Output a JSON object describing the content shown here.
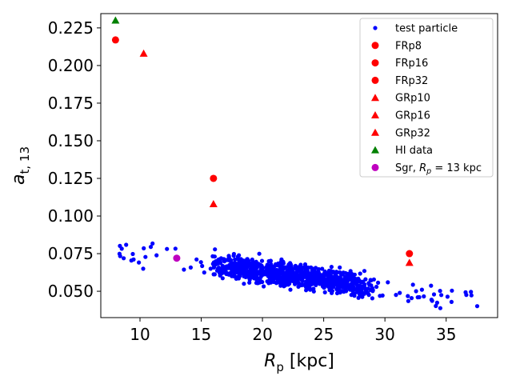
{
  "chart_data": {
    "type": "scatter",
    "title": "",
    "xlabel": "R_p [kpc]",
    "ylabel": "a_t, 13",
    "xlabel_parts": {
      "main": "R",
      "sub": "p",
      "rest": " [kpc]"
    },
    "ylabel_parts": {
      "main": "a",
      "sub": "t, 13"
    },
    "xlim": [
      6.8,
      39.2
    ],
    "ylim": [
      0.0325,
      0.2345
    ],
    "xticks": [
      10,
      15,
      20,
      25,
      30,
      35
    ],
    "yticks": [
      0.05,
      0.075,
      0.1,
      0.125,
      0.15,
      0.175,
      0.2,
      0.225
    ],
    "ytick_labels": [
      "0.050",
      "0.075",
      "0.100",
      "0.125",
      "0.150",
      "0.175",
      "0.200",
      "0.225"
    ],
    "legend_position": "top-right",
    "series": [
      {
        "name": "test particle",
        "legend_label": "test particle",
        "marker": "dot",
        "color": "#0000ff",
        "points": "generated",
        "note": "~1000 points spanning R_p 8-38 kpc, a_t,13 0.04-0.09, decreasing trend"
      },
      {
        "name": "FRp8",
        "legend_label": "FRp8",
        "marker": "circle",
        "color": "#ff0000",
        "x": [
          8
        ],
        "y": [
          0.217
        ]
      },
      {
        "name": "FRp16",
        "legend_label": "FRp16",
        "marker": "circle",
        "color": "#ff0000",
        "x": [
          16
        ],
        "y": [
          0.125
        ]
      },
      {
        "name": "FRp32",
        "legend_label": "FRp32",
        "marker": "circle",
        "color": "#ff0000",
        "x": [
          32
        ],
        "y": [
          0.075
        ]
      },
      {
        "name": "GRp10",
        "legend_label": "GRp10",
        "marker": "triangle",
        "color": "#ff0000",
        "x": [
          10.3
        ],
        "y": [
          0.208
        ]
      },
      {
        "name": "GRp16",
        "legend_label": "GRp16",
        "marker": "triangle",
        "color": "#ff0000",
        "x": [
          16
        ],
        "y": [
          0.108
        ]
      },
      {
        "name": "GRp32",
        "legend_label": "GRp32",
        "marker": "triangle",
        "color": "#ff0000",
        "x": [
          32
        ],
        "y": [
          0.069
        ]
      },
      {
        "name": "HI data",
        "legend_label": "HI data",
        "marker": "triangle",
        "color": "#008000",
        "x": [
          8
        ],
        "y": [
          0.23
        ]
      },
      {
        "name": "Sgr, R_p = 13 kpc",
        "legend_label": "Sgr, R_p = 13 kpc",
        "legend_parts": {
          "pre": "Sgr, ",
          "main": "R",
          "sub": "p",
          "post": " = 13 kpc"
        },
        "marker": "circle",
        "color": "#bf00bf",
        "x": [
          13
        ],
        "y": [
          0.072
        ]
      }
    ],
    "test_particle_trend": {
      "x_range": [
        8,
        38
      ],
      "y_at_8": 0.077,
      "y_at_38": 0.043,
      "scatter": 0.007,
      "count": 1000
    }
  }
}
